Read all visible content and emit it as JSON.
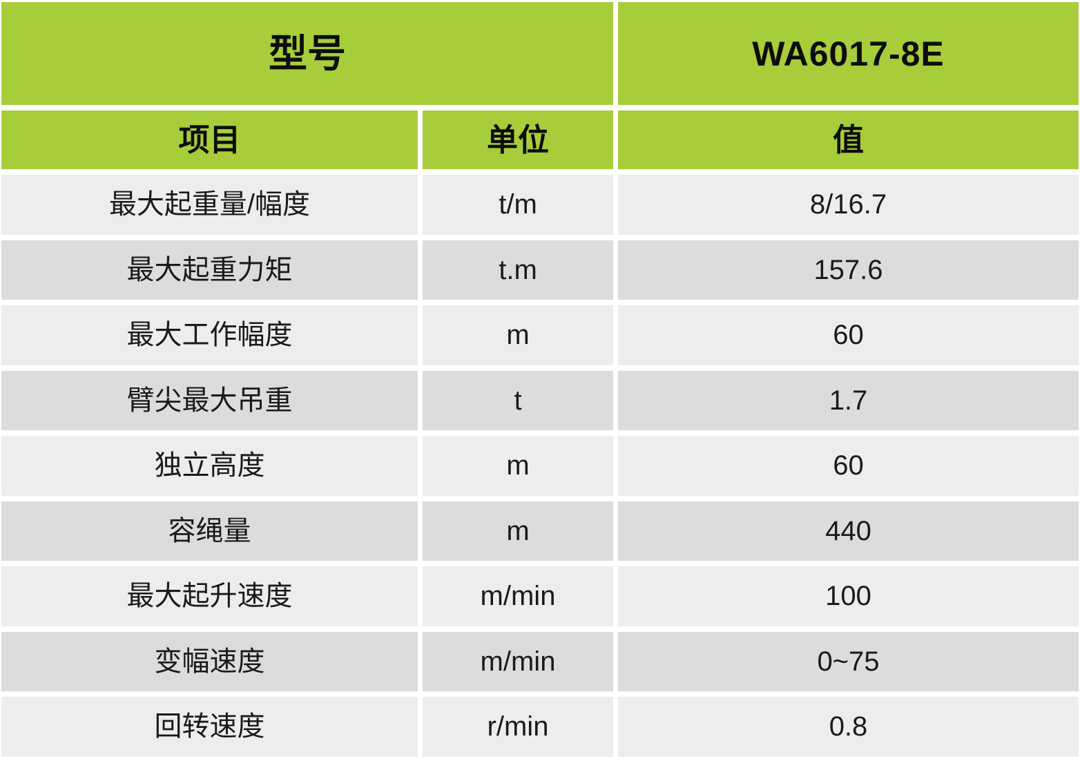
{
  "table": {
    "model_header": {
      "label": "型号",
      "model": "WA6017-8E"
    },
    "columns": {
      "item": "项目",
      "unit": "单位",
      "value": "值"
    },
    "rows": [
      {
        "item": "最大起重量/幅度",
        "unit": "t/m",
        "value": "8/16.7"
      },
      {
        "item": "最大起重力矩",
        "unit": "t.m",
        "value": "157.6"
      },
      {
        "item": "最大工作幅度",
        "unit": "m",
        "value": "60"
      },
      {
        "item": "臂尖最大吊重",
        "unit": "t",
        "value": "1.7"
      },
      {
        "item": "独立高度",
        "unit": "m",
        "value": "60"
      },
      {
        "item": "容绳量",
        "unit": "m",
        "value": "440"
      },
      {
        "item": "最大起升速度",
        "unit": "m/min",
        "value": "100"
      },
      {
        "item": "变幅速度",
        "unit": "m/min",
        "value": "0~75"
      },
      {
        "item": "回转速度",
        "unit": "r/min",
        "value": "0.8"
      }
    ],
    "colors": {
      "header_green": "#a8cd3a",
      "row_light": "#ededed",
      "row_dark": "#dcdcdc",
      "text": "#1a1a1a",
      "background": "#ffffff"
    }
  }
}
